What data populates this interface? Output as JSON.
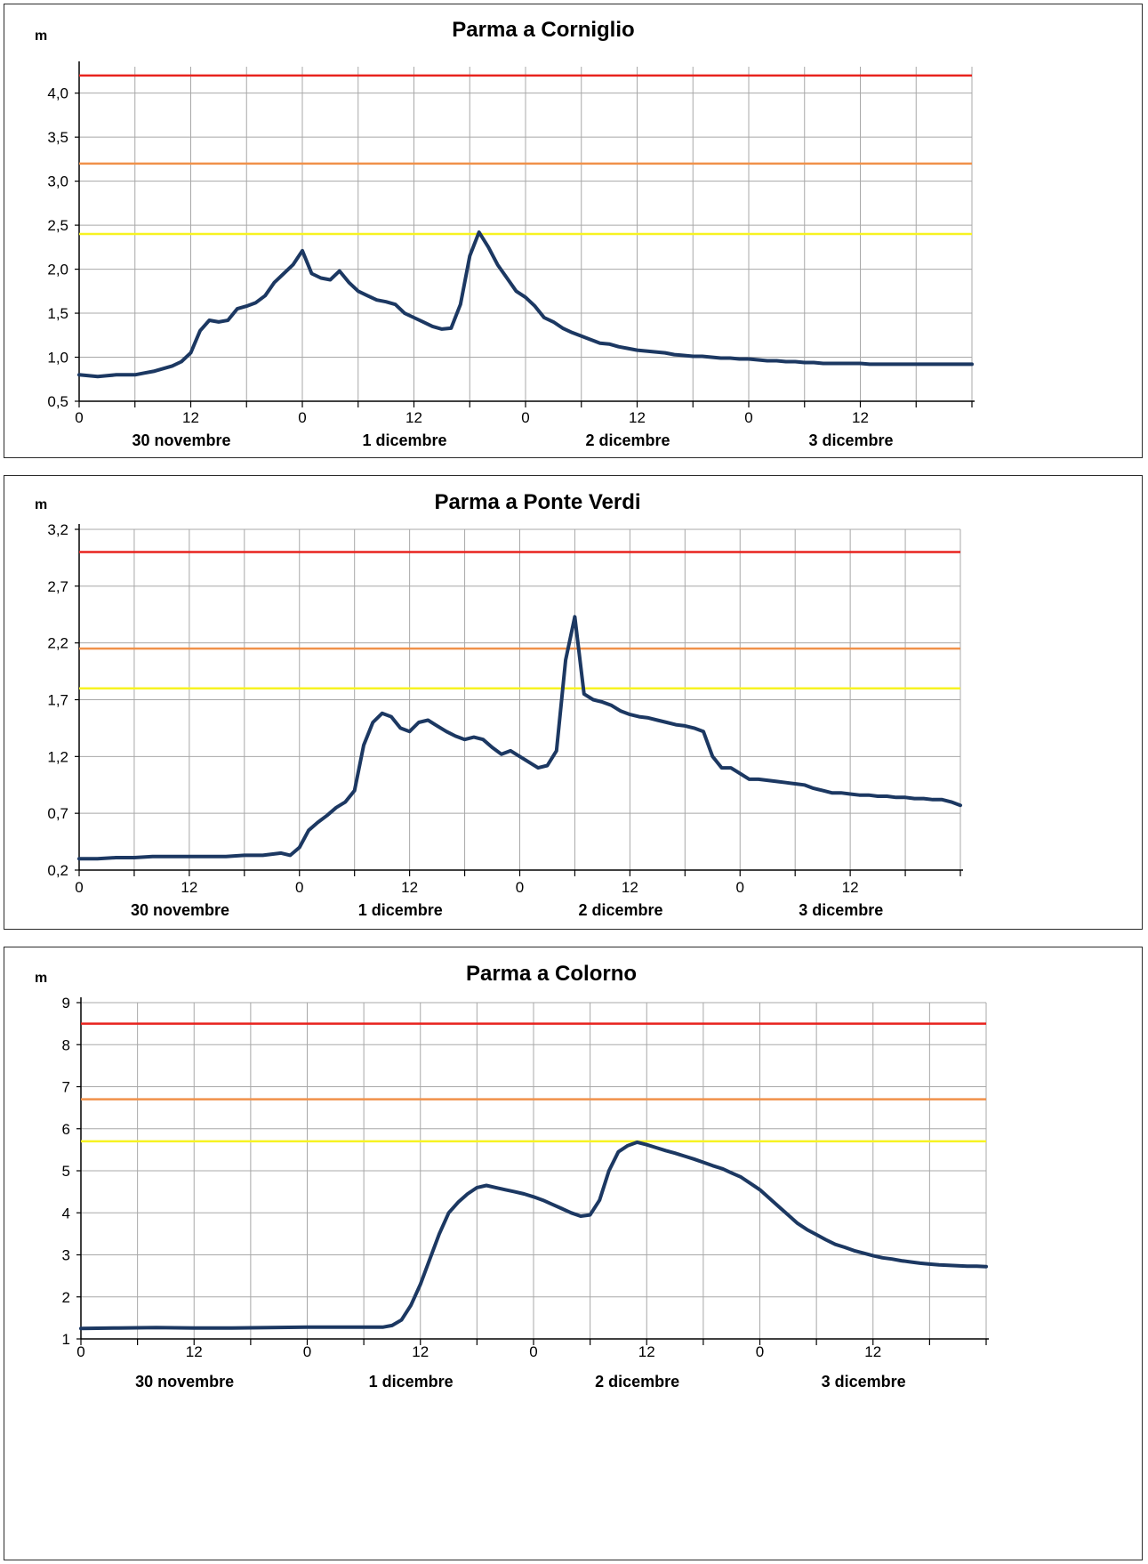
{
  "chart_data": [
    {
      "type": "line",
      "title": "Parma a Corniglio",
      "ylabel": "m",
      "ylim": [
        0.5,
        4.3
      ],
      "yticks": [
        "0,5",
        "1,0",
        "1,5",
        "2,0",
        "2,5",
        "3,0",
        "3,5",
        "4,0"
      ],
      "x_range_hours": [
        0,
        96
      ],
      "x_tick_labels": [
        "0",
        "12",
        "0",
        "12",
        "0",
        "12",
        "0",
        "12"
      ],
      "day_labels": [
        "30 novembre",
        "1 dicembre",
        "2 dicembre",
        "3 dicembre"
      ],
      "thresholds": [
        {
          "value": 4.2,
          "color": "#e8231e"
        },
        {
          "value": 3.2,
          "color": "#f0914a"
        },
        {
          "value": 2.4,
          "color": "#f7f322"
        }
      ],
      "series_color": "#1c3862",
      "series": [
        {
          "x": [
            0,
            1,
            2,
            3,
            4,
            5,
            6,
            7,
            8,
            9,
            10,
            11,
            12,
            13,
            14,
            15,
            16,
            17,
            18,
            19,
            20,
            21,
            22,
            23,
            24,
            25,
            26,
            27,
            28,
            29,
            30,
            31,
            32,
            33,
            34,
            35,
            36,
            37,
            38,
            39,
            40,
            41,
            42,
            43,
            44,
            45,
            46,
            47,
            48,
            49,
            50,
            51,
            52,
            53,
            54,
            55,
            56,
            57,
            58,
            59,
            60,
            61,
            62,
            63,
            64,
            65,
            66,
            67,
            68,
            69,
            70,
            71,
            72,
            73,
            74,
            75,
            76,
            77,
            78,
            79,
            80,
            81,
            82,
            83,
            84,
            85,
            86,
            87,
            88,
            89,
            90,
            91,
            92,
            93,
            94,
            95,
            96
          ],
          "y": [
            0.8,
            0.79,
            0.78,
            0.79,
            0.8,
            0.8,
            0.8,
            0.82,
            0.84,
            0.87,
            0.9,
            0.95,
            1.05,
            1.3,
            1.42,
            1.4,
            1.42,
            1.55,
            1.58,
            1.62,
            1.7,
            1.85,
            1.95,
            2.05,
            2.21,
            1.95,
            1.9,
            1.88,
            1.98,
            1.85,
            1.75,
            1.7,
            1.65,
            1.63,
            1.6,
            1.5,
            1.45,
            1.4,
            1.35,
            1.32,
            1.33,
            1.6,
            2.15,
            2.42,
            2.25,
            2.05,
            1.9,
            1.75,
            1.68,
            1.58,
            1.45,
            1.4,
            1.33,
            1.28,
            1.24,
            1.2,
            1.16,
            1.15,
            1.12,
            1.1,
            1.08,
            1.07,
            1.06,
            1.05,
            1.03,
            1.02,
            1.01,
            1.01,
            1.0,
            0.99,
            0.99,
            0.98,
            0.98,
            0.97,
            0.96,
            0.96,
            0.95,
            0.95,
            0.94,
            0.94,
            0.93,
            0.93,
            0.93,
            0.93,
            0.93,
            0.92,
            0.92,
            0.92,
            0.92,
            0.92,
            0.92,
            0.92,
            0.92,
            0.92,
            0.92,
            0.92,
            0.92
          ]
        }
      ]
    },
    {
      "type": "line",
      "title": "Parma a Ponte Verdi",
      "ylabel": "m",
      "ylim": [
        0.2,
        3.2
      ],
      "yticks": [
        "0,2",
        "0,7",
        "1,2",
        "1,7",
        "2,2",
        "2,7",
        "3,2"
      ],
      "x_range_hours": [
        0,
        96
      ],
      "x_tick_labels": [
        "0",
        "12",
        "0",
        "12",
        "0",
        "12",
        "0",
        "12"
      ],
      "day_labels": [
        "30 novembre",
        "1 dicembre",
        "2 dicembre",
        "3 dicembre"
      ],
      "thresholds": [
        {
          "value": 3.0,
          "color": "#e8231e"
        },
        {
          "value": 2.15,
          "color": "#f0914a"
        },
        {
          "value": 1.8,
          "color": "#f7f322"
        }
      ],
      "series_color": "#1c3862",
      "series": [
        {
          "x": [
            0,
            2,
            4,
            6,
            8,
            10,
            12,
            14,
            16,
            18,
            20,
            22,
            23,
            24,
            25,
            26,
            27,
            28,
            29,
            30,
            31,
            32,
            33,
            34,
            35,
            36,
            37,
            38,
            39,
            40,
            41,
            42,
            43,
            44,
            45,
            46,
            47,
            48,
            49,
            50,
            51,
            52,
            53,
            54,
            55,
            56,
            57,
            58,
            59,
            60,
            61,
            62,
            63,
            64,
            65,
            66,
            67,
            68,
            69,
            70,
            71,
            72,
            73,
            74,
            75,
            76,
            77,
            78,
            79,
            80,
            81,
            82,
            83,
            84,
            85,
            86,
            87,
            88,
            89,
            90,
            91,
            92,
            93,
            94,
            95,
            96
          ],
          "y": [
            0.3,
            0.3,
            0.31,
            0.31,
            0.32,
            0.32,
            0.32,
            0.32,
            0.32,
            0.33,
            0.33,
            0.35,
            0.33,
            0.4,
            0.55,
            0.62,
            0.68,
            0.75,
            0.8,
            0.9,
            1.3,
            1.5,
            1.58,
            1.55,
            1.45,
            1.42,
            1.5,
            1.52,
            1.47,
            1.42,
            1.38,
            1.35,
            1.37,
            1.35,
            1.28,
            1.22,
            1.25,
            1.2,
            1.15,
            1.1,
            1.12,
            1.25,
            2.05,
            2.43,
            1.75,
            1.7,
            1.68,
            1.65,
            1.6,
            1.57,
            1.55,
            1.54,
            1.52,
            1.5,
            1.48,
            1.47,
            1.45,
            1.42,
            1.2,
            1.1,
            1.1,
            1.05,
            1.0,
            1.0,
            0.99,
            0.98,
            0.97,
            0.96,
            0.95,
            0.92,
            0.9,
            0.88,
            0.88,
            0.87,
            0.86,
            0.86,
            0.85,
            0.85,
            0.84,
            0.84,
            0.83,
            0.83,
            0.82,
            0.82,
            0.8,
            0.77
          ]
        }
      ]
    },
    {
      "type": "line",
      "title": "Parma a Colorno",
      "ylabel": "m",
      "ylim": [
        1,
        9
      ],
      "yticks": [
        "1",
        "2",
        "3",
        "4",
        "5",
        "6",
        "7",
        "8",
        "9"
      ],
      "x_range_hours": [
        0,
        96
      ],
      "x_tick_labels": [
        "0",
        "12",
        "0",
        "12",
        "0",
        "12",
        "0",
        "12"
      ],
      "day_labels": [
        "30 novembre",
        "1 dicembre",
        "2 dicembre",
        "3 dicembre"
      ],
      "thresholds": [
        {
          "value": 8.5,
          "color": "#e8231e"
        },
        {
          "value": 6.7,
          "color": "#f0914a"
        },
        {
          "value": 5.7,
          "color": "#f7f322"
        }
      ],
      "series_color": "#1c3862",
      "series": [
        {
          "x": [
            0,
            4,
            8,
            12,
            16,
            20,
            24,
            28,
            32,
            33,
            34,
            35,
            36,
            37,
            38,
            39,
            40,
            41,
            42,
            43,
            44,
            45,
            46,
            47,
            48,
            49,
            50,
            51,
            52,
            53,
            54,
            55,
            56,
            57,
            58,
            59,
            60,
            61,
            62,
            63,
            64,
            65,
            66,
            67,
            68,
            69,
            70,
            71,
            72,
            73,
            74,
            75,
            76,
            77,
            78,
            79,
            80,
            81,
            82,
            83,
            84,
            85,
            86,
            87,
            88,
            89,
            90,
            91,
            92,
            93,
            94,
            95,
            96
          ],
          "y": [
            1.25,
            1.26,
            1.27,
            1.26,
            1.26,
            1.27,
            1.28,
            1.28,
            1.28,
            1.32,
            1.45,
            1.8,
            2.3,
            2.9,
            3.5,
            4.0,
            4.25,
            4.45,
            4.6,
            4.65,
            4.6,
            4.55,
            4.5,
            4.45,
            4.38,
            4.3,
            4.2,
            4.1,
            4.0,
            3.92,
            3.95,
            4.3,
            5.0,
            5.45,
            5.6,
            5.68,
            5.62,
            5.55,
            5.48,
            5.42,
            5.35,
            5.28,
            5.2,
            5.12,
            5.05,
            4.95,
            4.85,
            4.7,
            4.55,
            4.35,
            4.15,
            3.95,
            3.75,
            3.6,
            3.48,
            3.36,
            3.25,
            3.18,
            3.1,
            3.04,
            2.98,
            2.93,
            2.9,
            2.86,
            2.83,
            2.8,
            2.78,
            2.76,
            2.75,
            2.74,
            2.73,
            2.73,
            2.72
          ]
        }
      ]
    }
  ]
}
